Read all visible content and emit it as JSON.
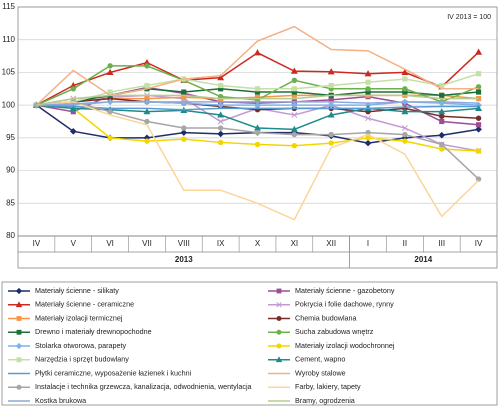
{
  "chart_data": {
    "type": "line",
    "annotation": "IV 2013 = 100",
    "categories": [
      "IV",
      "V",
      "VI",
      "VII",
      "VIII",
      "IX",
      "X",
      "XI",
      "XII",
      "I",
      "II",
      "III",
      "IV"
    ],
    "year_groups": [
      {
        "label": "2013",
        "count": 9
      },
      {
        "label": "2014",
        "count": 4
      }
    ],
    "ylim": [
      80,
      115
    ],
    "yticks": [
      80,
      85,
      90,
      95,
      100,
      105,
      110,
      115
    ],
    "grid": true,
    "series": [
      {
        "name": "Materiały ścienne - silikaty",
        "color": "#1f2d6b",
        "marker": "diamond",
        "values": [
          100,
          96,
          95,
          95,
          95.8,
          95.6,
          95.8,
          95.8,
          95.3,
          94.2,
          95,
          95.4,
          96.3
        ]
      },
      {
        "name": "Materiały ścienne - gazobetony",
        "color": "#9b4f96",
        "marker": "square",
        "values": [
          100,
          99,
          101.5,
          102.7,
          101.8,
          100.5,
          100.3,
          100.5,
          100.8,
          101.3,
          100.3,
          97.5,
          97
        ]
      },
      {
        "name": "Materiały ścienne - ceramiczne",
        "color": "#cc2a1f",
        "marker": "triangle",
        "values": [
          100,
          103,
          105,
          106.5,
          103.8,
          104.2,
          108,
          105.2,
          105.1,
          104.8,
          105,
          102.8,
          108.1
        ]
      },
      {
        "name": "Pokrycia i folie dachowe, rynny",
        "color": "#c39bd3",
        "marker": "x",
        "values": [
          100,
          101,
          101.2,
          101.5,
          101,
          97.5,
          99.5,
          98.5,
          100,
          98,
          96.5,
          94,
          93
        ]
      },
      {
        "name": "Materiały izolacji termicznej",
        "color": "#f79646",
        "marker": "square",
        "values": [
          100,
          100.5,
          101,
          101,
          101.2,
          101,
          101.2,
          101.5,
          101.5,
          101.5,
          101.5,
          101.5,
          101
        ]
      },
      {
        "name": "Chemia budowlana",
        "color": "#7b2c2c",
        "marker": "circle",
        "values": [
          100,
          100.5,
          101,
          100.5,
          100.3,
          99.8,
          99.3,
          99.5,
          99.5,
          99,
          99.5,
          98.3,
          98
        ]
      },
      {
        "name": "Drewno i materiały drewnopochodne",
        "color": "#1e6e3a",
        "marker": "square",
        "values": [
          100,
          100.5,
          101.5,
          102.5,
          102,
          102.5,
          102,
          102,
          101.5,
          102,
          102,
          101.5,
          102
        ]
      },
      {
        "name": "Sucha zabudowa wnętrz",
        "color": "#6ab04c",
        "marker": "circle",
        "values": [
          100,
          102.5,
          106,
          106,
          103.8,
          101.3,
          100.8,
          103.8,
          102.5,
          102.5,
          102.5,
          100.5,
          102.8
        ]
      },
      {
        "name": "Stolarka otworowa, parapety",
        "color": "#7fb2e5",
        "marker": "diamond",
        "values": [
          100,
          100,
          100.5,
          100.5,
          100.3,
          100,
          100,
          100,
          100,
          100,
          100.5,
          100.3,
          100
        ]
      },
      {
        "name": "Materiały izolacji wodochronnej",
        "color": "#f2d600",
        "marker": "circle",
        "values": [
          100,
          99.5,
          95,
          94.5,
          94.8,
          94.3,
          94,
          93.8,
          94.2,
          95,
          94.5,
          93.3,
          93
        ]
      },
      {
        "name": "Narzędzia i sprzęt budowlany",
        "color": "#c4e0a7",
        "marker": "square",
        "values": [
          100,
          100.5,
          102,
          103,
          104,
          103,
          102.5,
          102.5,
          103,
          103.5,
          104,
          103,
          104.8
        ]
      },
      {
        "name": "Cement, wapno",
        "color": "#1f8a8a",
        "marker": "triangle",
        "values": [
          100,
          99.5,
          99.3,
          99,
          99.2,
          98.5,
          96.5,
          96.3,
          98.5,
          99.5,
          99,
          99,
          99.5
        ]
      },
      {
        "name": "Płytki ceramiczne, wyposażenie łazienek i kuchni",
        "color": "#5b9bd5",
        "marker": "none",
        "values": [
          100,
          99.8,
          99.5,
          99.5,
          99.3,
          99.5,
          99.5,
          99.5,
          99.5,
          99.5,
          99.7,
          99.8,
          99.8
        ]
      },
      {
        "name": "Wyroby stalowe",
        "color": "#f4b183",
        "marker": "none",
        "values": [
          100,
          105.3,
          101.5,
          102.5,
          104,
          104.5,
          109.8,
          112,
          108.5,
          108.3,
          105.5,
          102.5,
          102.5
        ]
      },
      {
        "name": "Instalacje i technika grzewcza, kanalizacja, odwodnienia, wentylacja",
        "color": "#a6a6a6",
        "marker": "circle",
        "values": [
          100,
          100.5,
          99,
          97.5,
          96.5,
          96.5,
          95.8,
          95.5,
          95.5,
          95.8,
          95.5,
          94,
          88.7
        ]
      },
      {
        "name": "Farby, lakiery, tapety",
        "color": "#fcd59a",
        "marker": "none",
        "values": [
          100,
          100.5,
          98.5,
          97,
          87,
          87,
          85,
          82.5,
          93.5,
          95.5,
          92.5,
          83,
          88.5
        ]
      },
      {
        "name": "Kostka brukowa",
        "color": "#8da9db",
        "marker": "none",
        "values": [
          100,
          100.2,
          100.5,
          100.5,
          100.5,
          100.5,
          100.5,
          100.5,
          100.5,
          100.3,
          100.5,
          100.5,
          100.3
        ]
      },
      {
        "name": "Bramy, ogrodzenia",
        "color": "#b5cc8e",
        "marker": "none",
        "values": [
          100,
          101,
          101.5,
          101.5,
          101.5,
          101,
          101,
          101,
          101.5,
          101.5,
          101.5,
          101,
          101
        ]
      }
    ]
  }
}
